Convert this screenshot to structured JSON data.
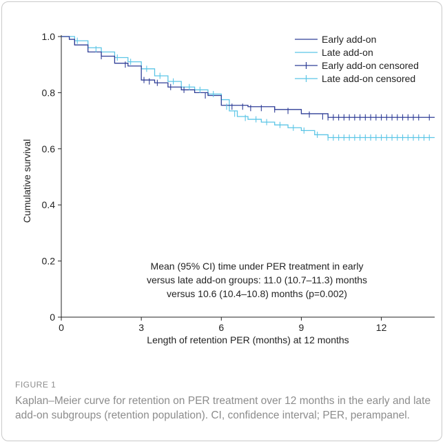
{
  "figure": {
    "label": "FIGURE 1",
    "caption": "Kaplan–Meier curve for retention on PER treatment over 12 months in the early and late add-on subgroups (retention population). CI, confidence interval; PER, perampanel."
  },
  "chart_data": {
    "type": "line",
    "xlabel": "Length of retention PER (months) at 12 months",
    "ylabel": "Cumulative survival",
    "xlim": [
      0,
      14
    ],
    "ylim": [
      0,
      1.0
    ],
    "xticks": [
      "0",
      "3",
      "6",
      "9",
      "12"
    ],
    "yticks": [
      "0",
      "0.2",
      "0.4",
      "0.6",
      "0.8",
      "1.0"
    ],
    "grid": false,
    "legend_position": "top-right",
    "legend": [
      "Early add-on",
      "Late add-on",
      "Early add-on censored",
      "Late add-on censored"
    ],
    "annotation": [
      "Mean (95% CI) time under PER treatment in early",
      "versus late add-on groups: 11.0 (10.7–11.3) months",
      "versus 10.6 (10.4–10.8) months (p=0.002)"
    ],
    "series": [
      {
        "name": "Early add-on",
        "color": "#2e3d96",
        "x": [
          0,
          0.3,
          0.5,
          1.0,
          1.5,
          2.0,
          2.5,
          3.0,
          3.0,
          3.5,
          4.0,
          4.5,
          5.0,
          5.5,
          6.0,
          6.0,
          7.0,
          8.0,
          9.0,
          10.0,
          14.0
        ],
        "y": [
          1.0,
          0.99,
          0.97,
          0.945,
          0.93,
          0.905,
          0.895,
          0.88,
          0.845,
          0.835,
          0.82,
          0.81,
          0.8,
          0.79,
          0.78,
          0.755,
          0.75,
          0.74,
          0.725,
          0.712,
          0.712
        ],
        "censored_x": [
          0.5,
          1.5,
          2.4,
          3.1,
          3.3,
          3.6,
          4.1,
          4.6,
          5.4,
          6.4,
          6.8,
          7.1,
          7.5,
          8.0,
          8.5,
          9.3,
          9.8,
          10.0,
          10.2,
          10.4,
          10.6,
          10.8,
          11.0,
          11.2,
          11.4,
          11.6,
          11.8,
          12.0,
          12.2,
          12.4,
          12.6,
          12.8,
          13.0,
          13.2,
          13.4,
          13.8
        ],
        "censored_y": [
          0.98,
          0.93,
          0.9,
          0.845,
          0.84,
          0.835,
          0.82,
          0.81,
          0.79,
          0.75,
          0.75,
          0.745,
          0.745,
          0.74,
          0.735,
          0.722,
          0.715,
          0.712,
          0.712,
          0.712,
          0.712,
          0.712,
          0.712,
          0.712,
          0.712,
          0.712,
          0.712,
          0.712,
          0.712,
          0.712,
          0.712,
          0.712,
          0.712,
          0.712,
          0.712,
          0.712
        ]
      },
      {
        "name": "Late add-on",
        "color": "#5bc5e6",
        "x": [
          0,
          0.5,
          1.0,
          1.5,
          2.0,
          2.5,
          3.0,
          3.5,
          4.0,
          4.5,
          5.0,
          5.5,
          6.0,
          6.3,
          6.6,
          7.0,
          7.5,
          8.0,
          8.5,
          9.0,
          9.5,
          10.0,
          14.0
        ],
        "y": [
          1.0,
          0.985,
          0.96,
          0.945,
          0.925,
          0.91,
          0.885,
          0.86,
          0.84,
          0.82,
          0.81,
          0.795,
          0.775,
          0.735,
          0.715,
          0.705,
          0.695,
          0.685,
          0.675,
          0.665,
          0.65,
          0.64,
          0.64
        ],
        "censored_x": [
          0.6,
          1.3,
          2.1,
          2.6,
          3.2,
          3.7,
          4.2,
          4.8,
          5.2,
          5.7,
          6.2,
          6.5,
          6.9,
          7.3,
          7.7,
          8.2,
          8.7,
          9.1,
          9.6,
          10.0,
          10.2,
          10.4,
          10.6,
          10.8,
          11.0,
          11.2,
          11.4,
          11.6,
          11.8,
          12.0,
          12.2,
          12.4,
          12.6,
          12.8,
          13.0,
          13.2,
          13.4,
          13.6,
          13.8
        ],
        "censored_y": [
          0.985,
          0.955,
          0.925,
          0.91,
          0.885,
          0.86,
          0.84,
          0.82,
          0.81,
          0.795,
          0.75,
          0.725,
          0.71,
          0.705,
          0.695,
          0.685,
          0.675,
          0.665,
          0.65,
          0.64,
          0.64,
          0.64,
          0.64,
          0.64,
          0.64,
          0.64,
          0.64,
          0.64,
          0.64,
          0.64,
          0.64,
          0.64,
          0.64,
          0.64,
          0.64,
          0.64,
          0.64,
          0.64,
          0.64
        ]
      }
    ]
  }
}
